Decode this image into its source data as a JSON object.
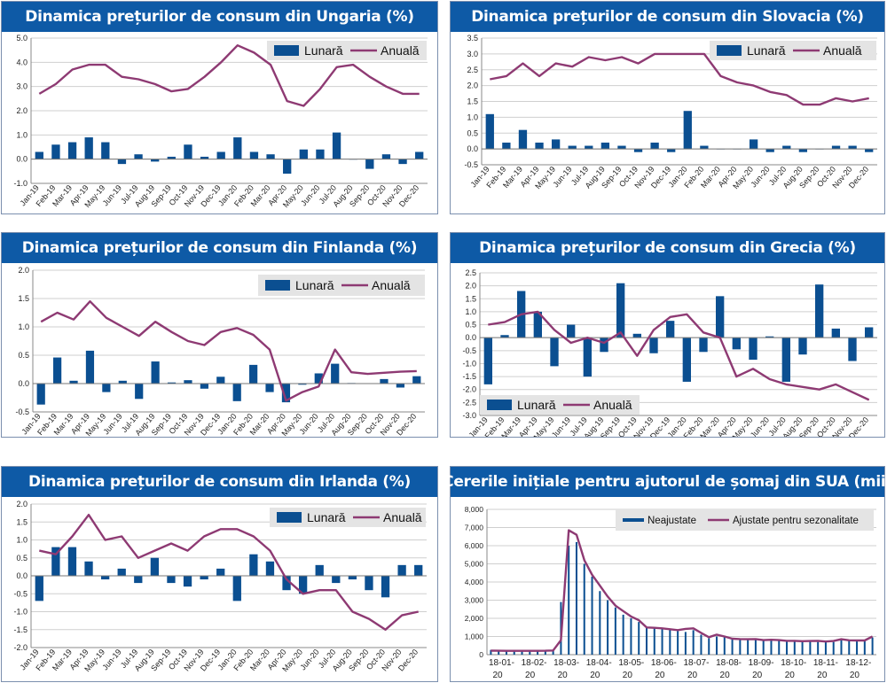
{
  "colors": {
    "bar": "#0b4f91",
    "line": "#8e3a73",
    "title_bg": "#0e5aa6",
    "grid": "#cfcfcf",
    "legend_bg": "#e4e4e4"
  },
  "chart_data": [
    {
      "id": "ungaria",
      "type": "bar+line",
      "title": "Dinamica prețurilor de consum din Ungaria (%)",
      "categories": [
        "Jan-19",
        "Feb-19",
        "Mar-19",
        "Apr-19",
        "May-19",
        "Jun-19",
        "Jul-19",
        "Aug-19",
        "Sep-19",
        "Oct-19",
        "Nov-19",
        "Dec-19",
        "Jan-20",
        "Feb-20",
        "Mar-20",
        "Apr-20",
        "May-20",
        "Jun-20",
        "Jul-20",
        "Aug-20",
        "Sep-20",
        "Oct-20",
        "Nov-20",
        "Dec-20"
      ],
      "series": [
        {
          "name": "Lunară",
          "kind": "bar",
          "values": [
            0.3,
            0.6,
            0.7,
            0.9,
            0.7,
            -0.2,
            0.2,
            -0.1,
            0.1,
            0.6,
            0.1,
            0.3,
            0.9,
            0.3,
            0.2,
            -0.6,
            0.4,
            0.4,
            1.1,
            0.0,
            -0.4,
            0.2,
            -0.2,
            0.3
          ]
        },
        {
          "name": "Anuală",
          "kind": "line",
          "values": [
            2.7,
            3.1,
            3.7,
            3.9,
            3.9,
            3.4,
            3.3,
            3.1,
            2.8,
            2.9,
            3.4,
            4.0,
            4.7,
            4.4,
            3.9,
            2.4,
            2.2,
            2.9,
            3.8,
            3.9,
            3.4,
            3.0,
            2.7,
            2.7
          ]
        }
      ],
      "ylim": [
        -1.0,
        5.0
      ],
      "yticks": [
        -1.0,
        0.0,
        1.0,
        2.0,
        3.0,
        4.0,
        5.0
      ],
      "tick_decimals": 1,
      "legend": {
        "position": "top-right",
        "items": [
          "Lunară",
          "Anuală"
        ]
      }
    },
    {
      "id": "slovacia",
      "type": "bar+line",
      "title": "Dinamica prețurilor de consum din Slovacia (%)",
      "categories": [
        "Jan-19",
        "Feb-19",
        "Mar-19",
        "Apr-19",
        "May-19",
        "Jun-19",
        "Jul-19",
        "Aug-19",
        "Sep-19",
        "Oct-19",
        "Nov-19",
        "Dec-19",
        "Jan-20",
        "Feb-20",
        "Mar-20",
        "Apr-20",
        "May-20",
        "Jun-20",
        "Jul-20",
        "Aug-20",
        "Sep-20",
        "Oct-20",
        "Nov-20",
        "Dec-20"
      ],
      "series": [
        {
          "name": "Lunară",
          "kind": "bar",
          "values": [
            1.1,
            0.2,
            0.6,
            0.2,
            0.3,
            0.1,
            0.1,
            0.2,
            0.1,
            -0.1,
            0.2,
            -0.1,
            1.2,
            0.1,
            0.0,
            0.0,
            0.3,
            -0.1,
            0.1,
            -0.1,
            0.0,
            0.1,
            0.1,
            -0.1
          ]
        },
        {
          "name": "Anuală",
          "kind": "line",
          "values": [
            2.2,
            2.3,
            2.7,
            2.3,
            2.7,
            2.6,
            2.9,
            2.8,
            2.9,
            2.7,
            3.0,
            3.0,
            3.0,
            3.0,
            2.3,
            2.1,
            2.0,
            1.8,
            1.7,
            1.4,
            1.4,
            1.6,
            1.5,
            1.6
          ]
        }
      ],
      "ylim": [
        -0.5,
        3.5
      ],
      "yticks": [
        -0.5,
        0.0,
        0.5,
        1.0,
        1.5,
        2.0,
        2.5,
        3.0,
        3.5
      ],
      "tick_decimals": 1,
      "legend": {
        "position": "top-right",
        "items": [
          "Lunară",
          "Anuală"
        ]
      }
    },
    {
      "id": "finlanda",
      "type": "bar+line",
      "title": "Dinamica prețurilor de consum din Finlanda (%)",
      "categories": [
        "Jan-19",
        "Feb-19",
        "Mar-19",
        "Apr-19",
        "May-19",
        "Jun-19",
        "Jul-19",
        "Aug-19",
        "Sep-19",
        "Oct-19",
        "Nov-19",
        "Dec-19",
        "Jan-20",
        "Feb-20",
        "Mar-20",
        "Apr-20",
        "May-20",
        "Jun-20",
        "Jul-20",
        "Aug-20",
        "Sep-20",
        "Oct-20",
        "Nov-20",
        "Dec-20"
      ],
      "series": [
        {
          "name": "Lunară",
          "kind": "bar",
          "values": [
            -0.37,
            0.46,
            0.05,
            0.58,
            -0.15,
            0.05,
            -0.27,
            0.39,
            0.02,
            0.06,
            -0.09,
            0.12,
            -0.31,
            0.33,
            -0.15,
            -0.33,
            -0.02,
            0.18,
            0.35,
            0.01,
            0.0,
            0.08,
            -0.07,
            0.13
          ]
        },
        {
          "name": "Anuală",
          "kind": "line",
          "values": [
            1.09,
            1.25,
            1.13,
            1.45,
            1.16,
            1.0,
            0.84,
            1.09,
            0.91,
            0.75,
            0.68,
            0.91,
            0.98,
            0.86,
            0.6,
            -0.3,
            -0.15,
            -0.05,
            0.6,
            0.2,
            0.17,
            0.19,
            0.21,
            0.22
          ]
        }
      ],
      "ylim": [
        -0.5,
        2.0
      ],
      "yticks": [
        -0.5,
        0.0,
        0.5,
        1.0,
        1.5,
        2.0
      ],
      "tick_decimals": 1,
      "legend": {
        "position": "top-right",
        "items": [
          "Lunară",
          "Anuală"
        ]
      }
    },
    {
      "id": "grecia",
      "type": "bar+line",
      "title": "Dinamica prețurilor de consum din Grecia (%)",
      "categories": [
        "Jan-19",
        "Feb-19",
        "Mar-19",
        "Apr-19",
        "May-19",
        "Jun-19",
        "Jul-19",
        "Aug-19",
        "Sep-19",
        "Oct-19",
        "Nov-19",
        "Dec-19",
        "Jan-20",
        "Feb-20",
        "Mar-20",
        "Apr-20",
        "May-20",
        "Jun-20",
        "Jul-20",
        "Aug-20",
        "Sep-20",
        "Oct-20",
        "Nov-20",
        "Dec-20"
      ],
      "series": [
        {
          "name": "Lunară",
          "kind": "bar",
          "values": [
            -1.8,
            0.1,
            1.8,
            1.0,
            -1.1,
            0.5,
            -1.5,
            -0.55,
            2.1,
            0.15,
            -0.6,
            0.65,
            -1.7,
            -0.55,
            1.6,
            -0.45,
            -0.85,
            0.05,
            -1.7,
            -0.65,
            2.05,
            0.35,
            -0.9,
            0.4
          ]
        },
        {
          "name": "Anuală",
          "kind": "line",
          "values": [
            0.5,
            0.6,
            0.9,
            1.0,
            0.3,
            -0.2,
            0.0,
            -0.2,
            0.2,
            -0.7,
            0.3,
            0.8,
            0.9,
            0.2,
            0.0,
            -1.5,
            -1.2,
            -1.6,
            -1.8,
            -1.9,
            -2.0,
            -1.8,
            -2.1,
            -2.4
          ]
        }
      ],
      "ylim": [
        -3.0,
        2.5
      ],
      "yticks": [
        -3.0,
        -2.5,
        -2.0,
        -1.5,
        -1.0,
        -0.5,
        0.0,
        0.5,
        1.0,
        1.5,
        2.0,
        2.5
      ],
      "tick_decimals": 1,
      "legend": {
        "position": "bottom-left",
        "items": [
          "Lunară",
          "Anuală"
        ]
      }
    },
    {
      "id": "irlanda",
      "type": "bar+line",
      "title": "Dinamica prețurilor de consum din Irlanda (%)",
      "categories": [
        "Jan-19",
        "Feb-19",
        "Mar-19",
        "Apr-19",
        "May-19",
        "Jun-19",
        "Jul-19",
        "Aug-19",
        "Sep-19",
        "Oct-19",
        "Nov-19",
        "Dec-19",
        "Jan-20",
        "Feb-20",
        "Mar-20",
        "Apr-20",
        "May-20",
        "Jun-20",
        "Jul-20",
        "Aug-20",
        "Sep-20",
        "Oct-20",
        "Nov-20",
        "Dec-20"
      ],
      "series": [
        {
          "name": "Lunară",
          "kind": "bar",
          "values": [
            -0.7,
            0.8,
            0.8,
            0.4,
            -0.1,
            0.2,
            -0.2,
            0.5,
            -0.2,
            -0.3,
            -0.1,
            0.2,
            -0.7,
            0.6,
            0.4,
            -0.4,
            -0.5,
            0.3,
            -0.2,
            -0.1,
            -0.4,
            -0.6,
            0.3,
            0.3
          ]
        },
        {
          "name": "Anuală",
          "kind": "line",
          "values": [
            0.7,
            0.6,
            1.1,
            1.7,
            1.0,
            1.1,
            0.5,
            0.7,
            0.9,
            0.7,
            1.1,
            1.3,
            1.3,
            1.1,
            0.7,
            -0.1,
            -0.5,
            -0.4,
            -0.4,
            -1.0,
            -1.2,
            -1.5,
            -1.1,
            -1.0
          ]
        }
      ],
      "ylim": [
        -2.0,
        2.0
      ],
      "yticks": [
        -2.0,
        -1.5,
        -1.0,
        -0.5,
        0.0,
        0.5,
        1.0,
        1.5,
        2.0
      ],
      "tick_decimals": 1,
      "legend": {
        "position": "top-right",
        "items": [
          "Lunară",
          "Anuală"
        ]
      }
    },
    {
      "id": "sua",
      "type": "bar+line",
      "title": "Cererile inițiale pentru ajutorul de șomaj din SUA (mii)",
      "x_tick_labels": [
        [
          "18-01-",
          "20"
        ],
        [
          "18-02-",
          "20"
        ],
        [
          "18-03-",
          "20"
        ],
        [
          "18-04-",
          "20"
        ],
        [
          "18-05-",
          "20"
        ],
        [
          "18-06-",
          "20"
        ],
        [
          "18-07-",
          "20"
        ],
        [
          "18-08-",
          "20"
        ],
        [
          "18-09-",
          "20"
        ],
        [
          "18-10-",
          "20"
        ],
        [
          "18-11-",
          "20"
        ],
        [
          "18-12-",
          "20"
        ]
      ],
      "series": [
        {
          "name": "Neajustate",
          "kind": "bar",
          "values": [
            260,
            230,
            220,
            215,
            215,
            220,
            230,
            240,
            260,
            2900,
            6000,
            6200,
            5000,
            4300,
            3500,
            3000,
            2600,
            2200,
            2000,
            1800,
            1500,
            1480,
            1450,
            1380,
            1300,
            1250,
            1350,
            1100,
            900,
            1000,
            980,
            840,
            830,
            810,
            820,
            780,
            780,
            790,
            750,
            720,
            710,
            720,
            700,
            740,
            700,
            800,
            780,
            760,
            750,
            950
          ]
        },
        {
          "name": "Ajustate pentru sezonalitate",
          "kind": "line",
          "values": [
            220,
            215,
            212,
            210,
            210,
            210,
            212,
            215,
            230,
            800,
            6850,
            6600,
            5200,
            4400,
            3800,
            3200,
            2700,
            2400,
            2100,
            1900,
            1500,
            1480,
            1450,
            1400,
            1350,
            1420,
            1450,
            1200,
            960,
            1100,
            1000,
            880,
            860,
            850,
            860,
            800,
            820,
            800,
            760,
            760,
            740,
            750,
            760,
            720,
            750,
            850,
            790,
            780,
            780,
            1000
          ]
        }
      ],
      "ylim": [
        0,
        8000
      ],
      "yticks": [
        0,
        1000,
        2000,
        3000,
        4000,
        5000,
        6000,
        7000,
        8000
      ],
      "ytick_labels": [
        "0",
        "1,000",
        "2,000",
        "3,000",
        "4,000",
        "5,000",
        "6,000",
        "7,000",
        "8,000"
      ],
      "legend": {
        "position": "top-right",
        "items": [
          "Neajustate",
          "Ajustate pentru sezonalitate"
        ]
      }
    }
  ]
}
